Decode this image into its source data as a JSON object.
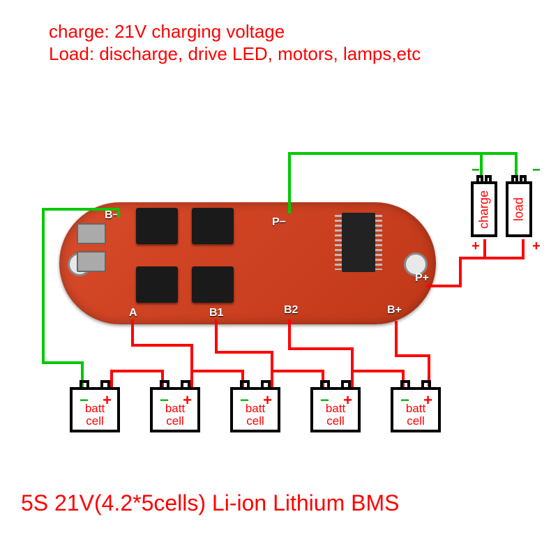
{
  "header": {
    "line1": "charge: 21V charging voltage",
    "line2": "Load: discharge, drive LED, motors, lamps,etc",
    "color": "#ff0000"
  },
  "footer": {
    "text": "5S 21V(4.2*5cells) Li-ion Lithium BMS",
    "color": "#ff0000"
  },
  "colors": {
    "wire_pos": "#ff0000",
    "wire_neg": "#00c800",
    "wire_bal": "#ff0000",
    "text_red": "#ff0000",
    "text_green": "#009600",
    "pcb": "#d84a2a",
    "black": "#000000",
    "bg": "#ffffff"
  },
  "pcb": {
    "labels": {
      "bminus": "B−",
      "pminus": "P−",
      "a": "A",
      "b1": "B1",
      "b2": "B2",
      "bplus": "B+",
      "pplus": "P+"
    }
  },
  "cells": [
    {
      "label": "batt\ncell",
      "neg": "−",
      "pos": "+"
    },
    {
      "label": "batt\ncell",
      "neg": "−",
      "pos": "+"
    },
    {
      "label": "batt\ncell",
      "neg": "−",
      "pos": "+"
    },
    {
      "label": "batt\ncell",
      "neg": "−",
      "pos": "+"
    },
    {
      "label": "batt\ncell",
      "neg": "−",
      "pos": "+"
    }
  ],
  "ports": {
    "charge": {
      "label": "charge",
      "neg": "−",
      "pos": "+"
    },
    "load": {
      "label": "load",
      "neg": "−",
      "pos": "+"
    }
  },
  "wiring": {
    "stroke_width": 4,
    "neg_paths": [
      "M118,554 L118,520 L62,520 L62,300 L170,300 L170,310",
      "M415,304 L415,220 L690,220 L690,252",
      "M690,220 L740,220 L740,252"
    ],
    "pos_paths": [
      "M613,410 L660,410 L660,370 L695,370 L695,345",
      "M660,370 L750,370 L750,345",
      "M568,462 L568,510 L615,510 L615,552"
    ],
    "balance_paths": [
      "M160,555 L160,532 L233,532 L233,554",
      "M190,460 L190,495 L275,495 L275,554",
      "M275,555 L275,532 L348,532 L348,554",
      "M310,460 L310,505 L390,505 L390,554",
      "M390,555 L390,532 L463,532 L463,554",
      "M415,460 L415,500 L505,500 L505,554",
      "M505,555 L505,532 L578,532 L578,554"
    ]
  }
}
